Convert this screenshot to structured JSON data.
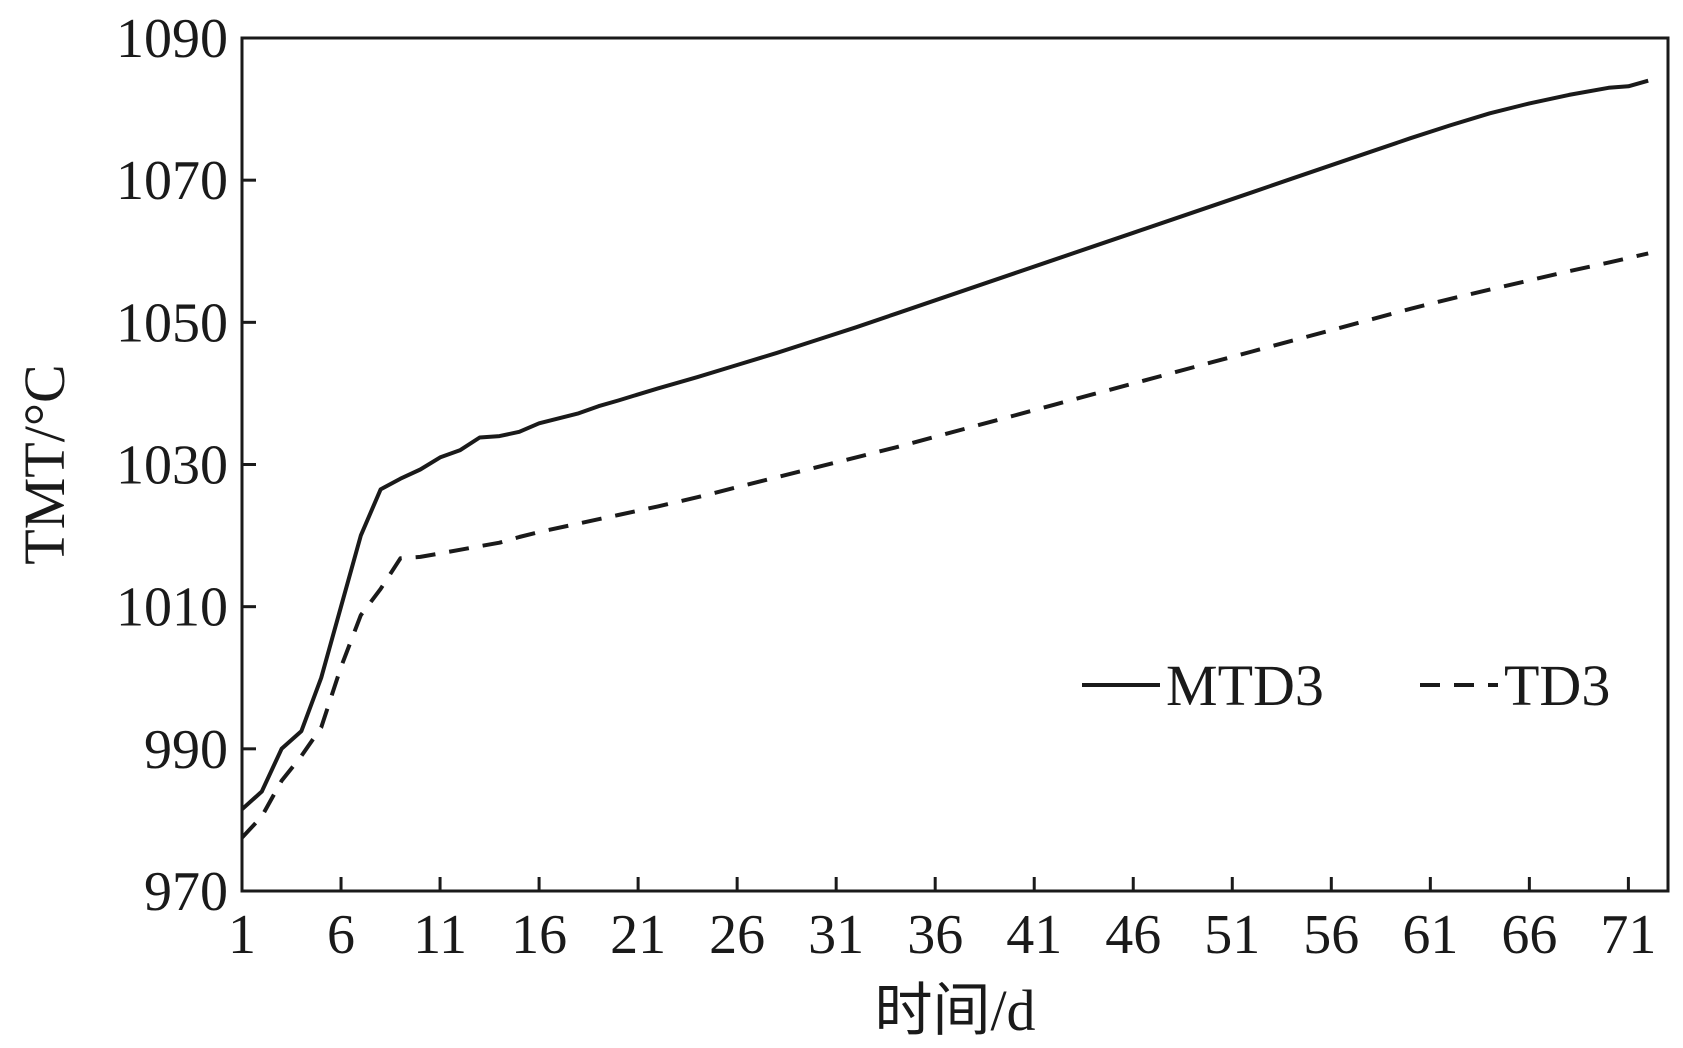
{
  "chart_data": {
    "type": "line",
    "title": "",
    "xlabel": "时间/d",
    "ylabel": "TMT/°C",
    "xlim": [
      1,
      73
    ],
    "ylim": [
      970,
      1090
    ],
    "xticks": [
      1,
      6,
      11,
      16,
      21,
      26,
      31,
      36,
      41,
      46,
      51,
      56,
      61,
      66,
      71
    ],
    "yticks": [
      970,
      990,
      1010,
      1030,
      1050,
      1070,
      1090
    ],
    "grid": false,
    "legend": "right",
    "series": [
      {
        "name": "MTD3",
        "style": "solid",
        "color": "#1a1a1a",
        "x": [
          1,
          2,
          3,
          4,
          5,
          6,
          7,
          8,
          9,
          10,
          11,
          12,
          13,
          14,
          15,
          16,
          17,
          18,
          19,
          20,
          22,
          24,
          26,
          28,
          30,
          32,
          34,
          36,
          38,
          40,
          42,
          44,
          46,
          48,
          50,
          52,
          54,
          56,
          58,
          60,
          62,
          64,
          66,
          68,
          70,
          71,
          72
        ],
        "values": [
          981.5,
          984,
          990,
          992.5,
          1000,
          1010,
          1020,
          1026.5,
          1028,
          1029.3,
          1031,
          1032,
          1033.8,
          1034,
          1034.6,
          1035.8,
          1036.5,
          1037.2,
          1038.2,
          1039,
          1040.7,
          1042.3,
          1044,
          1045.7,
          1047.5,
          1049.3,
          1051.2,
          1053.1,
          1055,
          1056.9,
          1058.8,
          1060.7,
          1062.6,
          1064.5,
          1066.4,
          1068.3,
          1070.2,
          1072.1,
          1074,
          1075.9,
          1077.7,
          1079.4,
          1080.8,
          1082,
          1083,
          1083.2,
          1084
        ]
      },
      {
        "name": "TD3",
        "style": "dashed",
        "color": "#1a1a1a",
        "x": [
          1,
          2,
          3,
          4,
          5,
          6,
          7,
          8,
          9,
          10,
          11,
          12,
          13,
          14,
          15,
          16,
          18,
          20,
          22,
          24,
          26,
          28,
          30,
          32,
          34,
          36,
          38,
          40,
          42,
          44,
          46,
          48,
          50,
          52,
          54,
          56,
          58,
          60,
          62,
          64,
          66,
          68,
          70,
          72
        ],
        "values": [
          977.5,
          980.5,
          985.5,
          989,
          993,
          1001.5,
          1008.8,
          1012.5,
          1016.8,
          1017,
          1017.5,
          1018,
          1018.5,
          1019,
          1019.8,
          1020.5,
          1021.7,
          1022.9,
          1024.1,
          1025.4,
          1026.8,
          1028.2,
          1029.6,
          1031,
          1032.4,
          1033.9,
          1035.4,
          1036.9,
          1038.4,
          1039.9,
          1041.4,
          1042.9,
          1044.4,
          1045.9,
          1047.4,
          1048.9,
          1050.4,
          1051.9,
          1053.3,
          1054.6,
          1055.9,
          1057.2,
          1058.4,
          1059.7
        ]
      }
    ]
  }
}
